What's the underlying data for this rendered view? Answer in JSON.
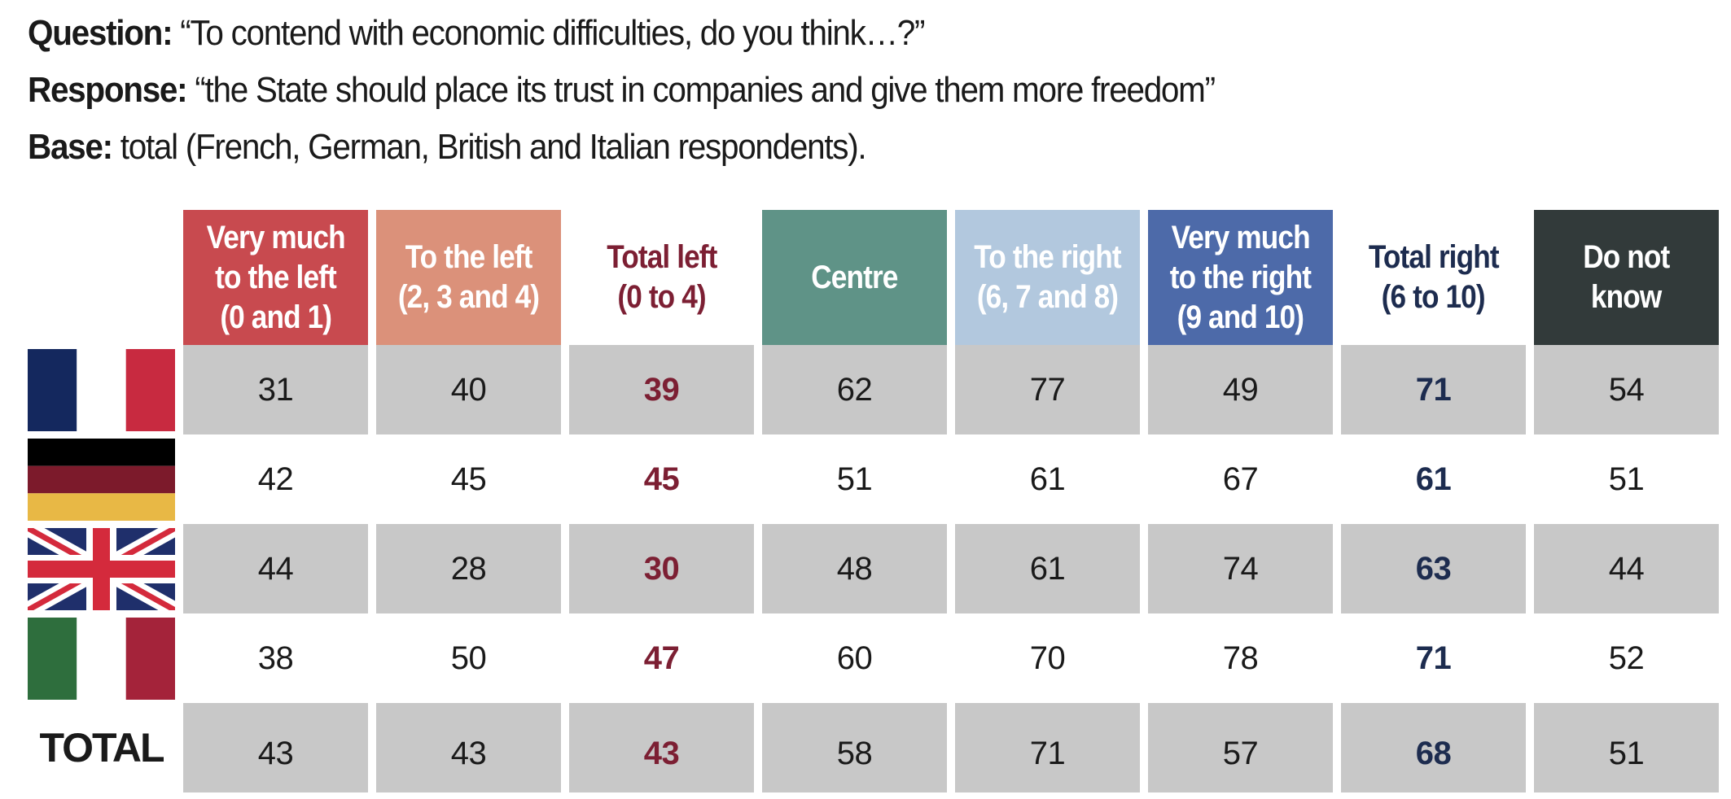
{
  "intro": {
    "question_label": "Question:",
    "question_text": " “To contend with economic difficulties, do you think…?”",
    "response_label": "Response:",
    "response_text": " “the State should place its trust in companies and give them more freedom”",
    "base_label": "Base:",
    "base_text": " total (French, German, British and Italian respondents)."
  },
  "chart_data": {
    "type": "table",
    "columns": [
      {
        "label": [
          "Very much",
          "to the left",
          "(0 and 1)"
        ],
        "bg": "#c84a4f",
        "fg": "#ffffff"
      },
      {
        "label": [
          "To the left",
          "(2, 3 and 4)"
        ],
        "bg": "#db917a",
        "fg": "#ffffff"
      },
      {
        "label": [
          "Total left",
          "(0 to 4)"
        ],
        "bg": "#ffffff",
        "fg": "#7c1f33"
      },
      {
        "label": [
          "Centre"
        ],
        "bg": "#5f9387",
        "fg": "#ffffff"
      },
      {
        "label": [
          "To the right",
          "(6, 7 and 8)"
        ],
        "bg": "#b2c8de",
        "fg": "#ffffff"
      },
      {
        "label": [
          "Very much",
          "to the right",
          "(9 and 10)"
        ],
        "bg": "#4d6aa9",
        "fg": "#ffffff"
      },
      {
        "label": [
          "Total right",
          "(6 to 10)"
        ],
        "bg": "#ffffff",
        "fg": "#1d2c4f"
      },
      {
        "label": [
          "Do not",
          "know"
        ],
        "bg": "#323a3a",
        "fg": "#ffffff"
      }
    ],
    "rows": [
      {
        "flag": "france-flag-icon",
        "values": [
          "31",
          "40",
          "39",
          "62",
          "77",
          "49",
          "71",
          "54"
        ]
      },
      {
        "flag": "germany-flag-icon",
        "values": [
          "42",
          "45",
          "45",
          "51",
          "61",
          "67",
          "61",
          "51"
        ]
      },
      {
        "flag": "uk-flag-icon",
        "values": [
          "44",
          "28",
          "30",
          "48",
          "61",
          "74",
          "63",
          "44"
        ]
      },
      {
        "flag": "italy-flag-icon",
        "values": [
          "38",
          "50",
          "47",
          "60",
          "70",
          "78",
          "71",
          "52"
        ]
      }
    ],
    "total_row": {
      "label": "TOTAL",
      "values": [
        "43",
        "43",
        "43",
        "58",
        "71",
        "57",
        "68",
        "51"
      ]
    },
    "highlight_columns": {
      "left_total_index": 2,
      "right_total_index": 6
    },
    "colors": {
      "shade": "#c8c8c8",
      "left_total_text": "#7c1f33",
      "right_total_text": "#1d2c4f"
    }
  }
}
